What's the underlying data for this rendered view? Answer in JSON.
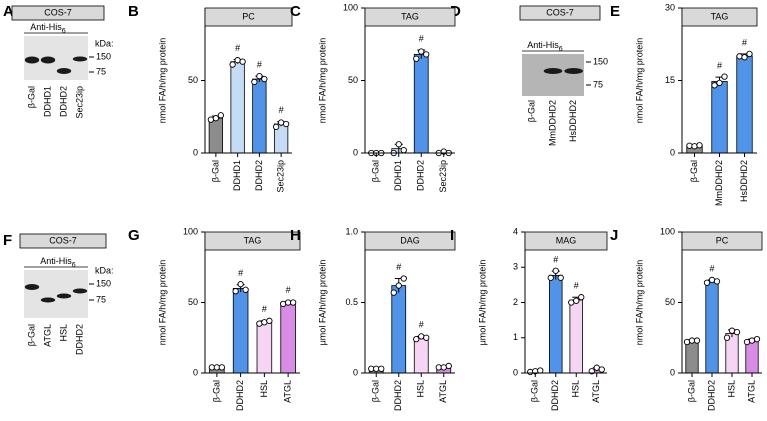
{
  "blots": [
    {
      "panel": "A",
      "cell_line": "COS-7",
      "antibody": "Anti-His",
      "antibody_sub": "6",
      "kda_title": "kDa:",
      "kda_labels": [
        "150",
        "75"
      ],
      "lanes": [
        "β-Gal",
        "DDHD1",
        "DDHD2",
        "Sec23ip"
      ]
    },
    {
      "panel": "D",
      "cell_line": "COS-7",
      "antibody": "Anti-His",
      "antibody_sub": "6",
      "kda_labels": [
        "150",
        "75"
      ],
      "lanes": [
        "β-Gal",
        "MmDDHD2",
        "HsDDHD2"
      ]
    },
    {
      "panel": "F",
      "cell_line": "COS-7",
      "antibody": "Anti-His",
      "antibody_sub": "6",
      "kda_title": "kDa:",
      "kda_labels": [
        "150",
        "75"
      ],
      "lanes": [
        "β-Gal",
        "ATGL",
        "HSL",
        "DDHD2"
      ]
    }
  ],
  "chart_data": [
    {
      "type": "bar",
      "panel": "B",
      "title": "PC",
      "y_label": "nmol FA/h/mg protein",
      "categories": [
        "β-Gal",
        "DDHD1",
        "DDHD2",
        "Sec23ip"
      ],
      "colors": [
        "#8c8c8c",
        "#c5dcf6",
        "#4f94e8",
        "#c5dcf6"
      ],
      "values": [
        24,
        63,
        51,
        20
      ],
      "errors": [
        1.5,
        1.5,
        2,
        1.5
      ],
      "points": [
        [
          23,
          24,
          26
        ],
        [
          61,
          64,
          63
        ],
        [
          49,
          53,
          51
        ],
        [
          18,
          21,
          20
        ]
      ],
      "annotations": [
        null,
        "#",
        "#",
        "#"
      ],
      "ylim": [
        0,
        100
      ],
      "yticks": [
        0,
        50
      ]
    },
    {
      "type": "bar",
      "panel": "C",
      "title": "TAG",
      "y_label": "nmol FA/h/mg protein",
      "categories": [
        "β-Gal",
        "DDHD1",
        "DDHD2",
        "Sec23ip"
      ],
      "colors": [
        "#8c8c8c",
        "#c5dcf6",
        "#4f94e8",
        "#c5dcf6"
      ],
      "values": [
        0,
        3,
        68,
        0.3
      ],
      "errors": [
        0,
        3,
        3,
        0.5
      ],
      "points": [
        [
          0,
          0,
          0
        ],
        [
          0,
          6,
          2
        ],
        [
          65,
          70,
          68
        ],
        [
          0,
          1,
          0
        ]
      ],
      "annotations": [
        null,
        null,
        "#",
        null
      ],
      "ylim": [
        0,
        100
      ],
      "yticks": [
        0,
        50,
        100
      ]
    },
    {
      "type": "bar",
      "panel": "E",
      "title": "TAG",
      "y_label": "nmol FA/h/mg protein",
      "categories": [
        "β-Gal",
        "MmDDHD2",
        "HsDDHD2"
      ],
      "colors": [
        "#8c8c8c",
        "#4f94e8",
        "#4f94e8"
      ],
      "values": [
        1.5,
        14.8,
        20.1
      ],
      "errors": [
        0.1,
        0.9,
        0.4
      ],
      "points": [
        [
          1.5,
          1.4,
          1.6
        ],
        [
          14,
          14.5,
          15.8
        ],
        [
          20,
          19.8,
          20.5
        ]
      ],
      "annotations": [
        null,
        "#",
        "#"
      ],
      "ylim": [
        0,
        30
      ],
      "yticks": [
        0,
        15,
        30
      ]
    },
    {
      "type": "bar",
      "panel": "G",
      "title": "TAG",
      "y_label": "nmol FA/h/mg protein",
      "categories": [
        "β-Gal",
        "DDHD2",
        "HSL",
        "ATGL"
      ],
      "colors": [
        "#8c8c8c",
        "#4f94e8",
        "#f6d4f4",
        "#d98ce6"
      ],
      "values": [
        4,
        60,
        36,
        50
      ],
      "errors": [
        0.3,
        2.6,
        1,
        0.5
      ],
      "points": [
        [
          4,
          4,
          4
        ],
        [
          58,
          63,
          59
        ],
        [
          35,
          36,
          37
        ],
        [
          49,
          50,
          50
        ]
      ],
      "annotations": [
        null,
        "#",
        "#",
        "#"
      ],
      "ylim": [
        0,
        100
      ],
      "yticks": [
        0,
        50,
        100
      ]
    },
    {
      "type": "bar",
      "panel": "H",
      "title": "DAG",
      "y_label": "μmol FA/h/mg protein",
      "categories": [
        "β-Gal",
        "DDHD2",
        "HSL",
        "ATGL"
      ],
      "colors": [
        "#8c8c8c",
        "#4f94e8",
        "#f6d4f4",
        "#d98ce6"
      ],
      "values": [
        0.03,
        0.62,
        0.25,
        0.04
      ],
      "errors": [
        0.005,
        0.05,
        0.01,
        0.005
      ],
      "points": [
        [
          0.03,
          0.03,
          0.03
        ],
        [
          0.57,
          0.62,
          0.67
        ],
        [
          0.24,
          0.26,
          0.25
        ],
        [
          0.04,
          0.04,
          0.05
        ]
      ],
      "annotations": [
        null,
        "#",
        "#",
        null
      ],
      "ylim": [
        0,
        1
      ],
      "yticks": [
        0,
        0.5,
        {
          "value": 1,
          "label": "1.0"
        }
      ]
    },
    {
      "type": "bar",
      "panel": "I",
      "title": "MAG",
      "y_label": "μmol FA/h/mg protein",
      "categories": [
        "β-Gal",
        "DDHD2",
        "HSL",
        "ATGL"
      ],
      "colors": [
        "#8c8c8c",
        "#4f94e8",
        "#f6d4f4",
        "#d98ce6"
      ],
      "values": [
        0.05,
        2.77,
        2.07,
        0.1
      ],
      "errors": [
        0.02,
        0.12,
        0.08,
        0.05
      ],
      "points": [
        [
          0.03,
          0.05,
          0.07
        ],
        [
          2.7,
          2.9,
          2.7
        ],
        [
          2,
          2.05,
          2.15
        ],
        [
          0.05,
          0.15,
          0.1
        ]
      ],
      "annotations": [
        null,
        "#",
        "#",
        null
      ],
      "ylim": [
        0,
        4
      ],
      "yticks": [
        0,
        1,
        2,
        3,
        4
      ]
    },
    {
      "type": "bar",
      "panel": "J",
      "title": "PC",
      "y_label": "nmol FA/h/mg protein",
      "categories": [
        "β-Gal",
        "DDHD2",
        "HSL",
        "ATGL"
      ],
      "colors": [
        "#8c8c8c",
        "#4f94e8",
        "#f6d4f4",
        "#d98ce6"
      ],
      "values": [
        23,
        65,
        28,
        23
      ],
      "errors": [
        0.5,
        1,
        2.6,
        1
      ],
      "points": [
        [
          22,
          23,
          23
        ],
        [
          64,
          66,
          65
        ],
        [
          25,
          30,
          29
        ],
        [
          22,
          23,
          24
        ]
      ],
      "annotations": [
        null,
        "#",
        null,
        null
      ],
      "ylim": [
        0,
        100
      ],
      "yticks": [
        0,
        50,
        100
      ]
    }
  ]
}
